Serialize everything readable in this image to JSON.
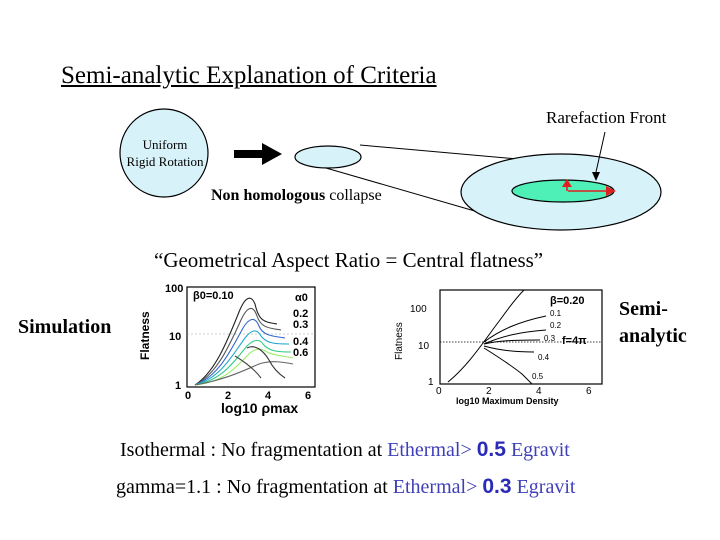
{
  "title": "Semi-analytic Explanation of Criteria",
  "diagram": {
    "uniform_line1": "Uniform",
    "uniform_line2": "Rigid Rotation",
    "collapse_bold": "Non homologous",
    "collapse_rest": " collapse",
    "rarefaction": "Rarefaction Front"
  },
  "quote": "“Geometrical Aspect Ratio = Central flatness”",
  "labels": {
    "simulation": "Simulation",
    "semi_line1": "Semi-",
    "semi_line2": "analytic"
  },
  "plot_left": {
    "ylabel": "Flatness",
    "yticks": [
      "100",
      "10",
      "1"
    ],
    "xticks": [
      "0",
      "2",
      "4",
      "6"
    ],
    "xlabel": "log10 ρmax",
    "beta_label": "β0=0.10",
    "alpha_header": "α0",
    "alpha_values": [
      "0.2",
      "0.3",
      "0.4",
      "0.6"
    ]
  },
  "plot_right": {
    "ylabel": "Flatness",
    "yticks": [
      "100",
      "10",
      "1"
    ],
    "xticks": [
      "0",
      "2",
      "4",
      "6"
    ],
    "xlabel": "log10 Maximum Density",
    "beta_label": "β=0.20",
    "curve_labels": [
      "0.1",
      "0.2",
      "0.3",
      "0.4",
      "0.5"
    ],
    "f_label": "f=4π"
  },
  "bottom": {
    "line1_prefix": "Isothermal :   No fragmentation at ",
    "line1_energy": "Ethermal> ",
    "line1_value": "0.5",
    "line1_suffix": " Egravit",
    "line2_prefix": "gamma=1.1 :   No fragmentation at ",
    "line2_energy": "Ethermal> ",
    "line2_value": "0.3",
    "line2_suffix": " Egravit"
  },
  "colors": {
    "cloud_fill": "#d8f2fa",
    "core_fill": "#4ff0b8",
    "arrow_red": "#e02020",
    "energy_blue": "#3f3fb8"
  }
}
